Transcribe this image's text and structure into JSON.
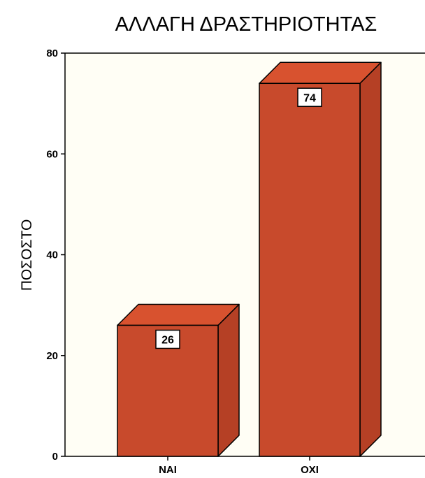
{
  "chart_data": {
    "type": "bar",
    "title": "ΑΛΛΑΓΗ ΔΡΑΣΤΗΡΙΟΤΗΤΑΣ",
    "xlabel": "",
    "ylabel": "ΠΟΣΟΣΤΟ",
    "categories": [
      "ΝΑΙ",
      "ΟΧΙ"
    ],
    "values": [
      26,
      74
    ],
    "data_labels": [
      "26",
      "74"
    ],
    "ylim": [
      0,
      80
    ],
    "yticks": [
      "0",
      "20",
      "40",
      "60",
      "80"
    ],
    "grid": false,
    "style": "3d",
    "colors": {
      "bar_front": "#c84a2c",
      "bar_top": "#d8522f",
      "bar_side": "#b54025",
      "plot_background": "#fffef5"
    }
  }
}
